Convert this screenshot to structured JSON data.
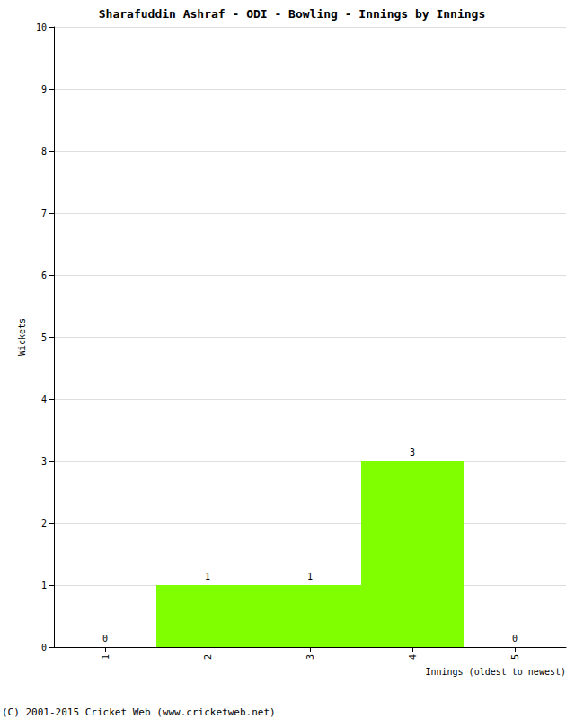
{
  "chart_data": {
    "type": "bar",
    "title": "Sharafuddin Ashraf - ODI - Bowling - Innings by Innings",
    "x_label": "Innings (oldest to newest)",
    "y_label": "Wickets",
    "categories": [
      "1",
      "2",
      "3",
      "4",
      "5"
    ],
    "values": [
      0,
      1,
      1,
      3,
      0
    ],
    "color": "#80ff00",
    "ylim": [
      0,
      10
    ],
    "yticks": [
      0,
      1,
      2,
      3,
      4,
      5,
      6,
      7,
      8,
      9,
      10
    ],
    "grid": true,
    "data_labels": true,
    "annotations": [
      "(C) 2001-2015 Cricket Web (www.cricketweb.net)"
    ]
  }
}
